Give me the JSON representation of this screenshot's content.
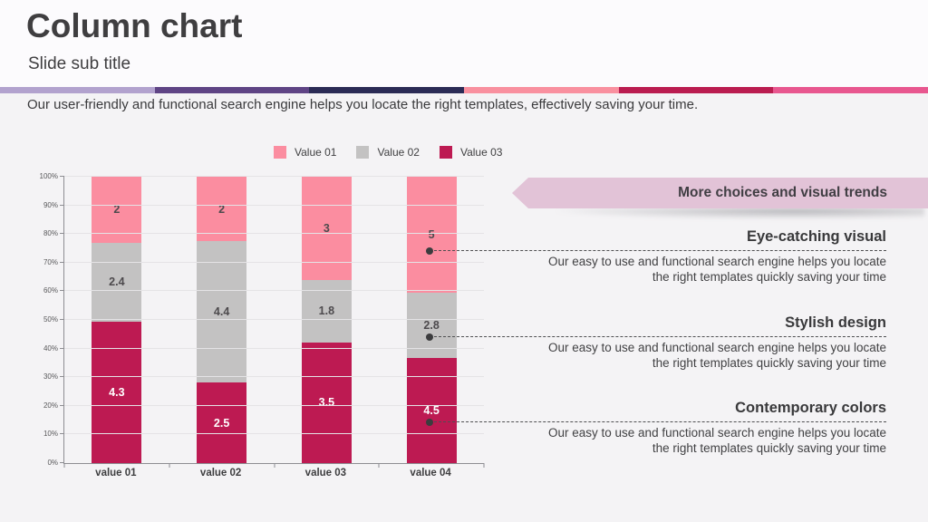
{
  "header": {
    "title": "Column chart",
    "subtitle": "Slide sub title"
  },
  "intro_text": "Our user-friendly and functional search engine helps you locate the right templates, effectively saving your time.",
  "accent_stripe_colors": [
    "#b2a2ce",
    "#5f4485",
    "#2b2b55",
    "#f9909f",
    "#ba1c50",
    "#e8578f"
  ],
  "chart_data": {
    "type": "bar",
    "subtype": "100-percent-stacked-column",
    "title": "",
    "categories": [
      "value 01",
      "value 02",
      "value 03",
      "value 04"
    ],
    "series": [
      {
        "name": "Value 01",
        "color": "#fb8da0",
        "label_color": "#4d4a4d",
        "values": [
          2,
          2,
          3,
          5
        ]
      },
      {
        "name": "Value 02",
        "color": "#c3c2c2",
        "label_color": "#4d4a4d",
        "values": [
          2.4,
          4.4,
          1.8,
          2.8
        ]
      },
      {
        "name": "Value 03",
        "color": "#bd1a52",
        "label_color": "#ffffff",
        "values": [
          4.3,
          2.5,
          3.5,
          4.5
        ]
      }
    ],
    "stack_order_bottom_to_top": [
      "Value 03",
      "Value 02",
      "Value 01"
    ],
    "y_axis": {
      "min": 0,
      "max": 100,
      "unit": "percent",
      "ticks": [
        "0%",
        "10%",
        "20%",
        "30%",
        "40%",
        "50%",
        "60%",
        "70%",
        "80%",
        "90%",
        "100%"
      ]
    },
    "legend_position": "top",
    "grid": true
  },
  "banner": {
    "label": "More choices and visual trends",
    "background": "#e2c3d7"
  },
  "callouts": [
    {
      "title": "Eye-catching visual",
      "body": "Our easy to use and functional search engine helps you locate the right templates quickly saving your time"
    },
    {
      "title": "Stylish design",
      "body": "Our easy to use and functional search engine helps you locate the right templates quickly saving your time"
    },
    {
      "title": "Contemporary colors",
      "body": "Our easy to use and functional search engine helps you locate the right templates quickly saving your time"
    }
  ]
}
